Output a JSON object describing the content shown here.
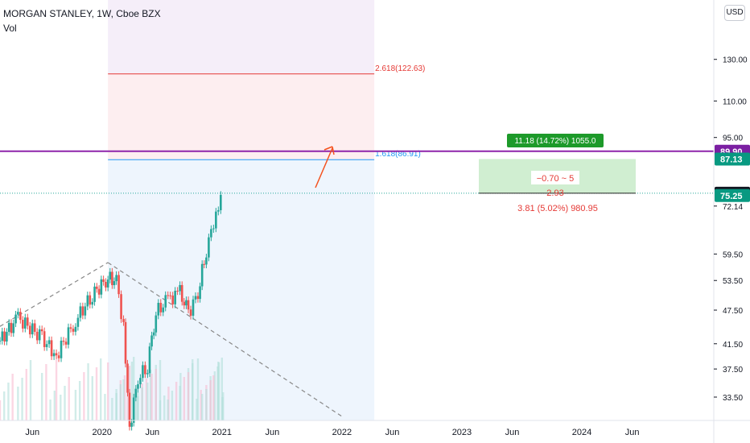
{
  "header": {
    "symbol": "MORGAN STANLEY, 1W, Cboe BZX",
    "indicator": "Vol",
    "currency": "USD"
  },
  "colors": {
    "bull": "#26a69a",
    "bear": "#ef5350",
    "volume_bull": "#b2dfdb",
    "volume_bear": "#f8bbd0",
    "fib_upper_zone": "#fdeef0",
    "fib_lower_zone": "#eef5fd",
    "fib_2618_line": "#e53935",
    "fib_1618_line": "#2196f3",
    "horizontal_line": "#8e24aa",
    "target_zone": "#c8ebc9",
    "price_line": "#26a69a",
    "trendline": "#888888",
    "arrow": "#f4511e",
    "label_green": "#089981",
    "label_dark": "#131722",
    "label_purple": "#7b1fa2"
  },
  "chart_data": {
    "type": "candlestick",
    "x_ticks": [
      {
        "label": "Jun",
        "t": 2019.42
      },
      {
        "label": "2020",
        "t": 2020.0
      },
      {
        "label": "Jun",
        "t": 2020.42
      },
      {
        "label": "2021",
        "t": 2021.0
      },
      {
        "label": "Jun",
        "t": 2021.42
      },
      {
        "label": "2022",
        "t": 2022.0
      },
      {
        "label": "Jun",
        "t": 2022.42
      },
      {
        "label": "2023",
        "t": 2023.0
      },
      {
        "label": "Jun",
        "t": 2023.42
      },
      {
        "label": "2024",
        "t": 2024.0
      },
      {
        "label": "Jun",
        "t": 2024.42
      }
    ],
    "y_axis": {
      "scale": "log",
      "ticks": [
        "130.00",
        "110.00",
        "95.00",
        "72.14",
        "59.50",
        "53.50",
        "47.50",
        "41.50",
        "37.50",
        "33.50"
      ]
    },
    "x_range": [
      2019.15,
      2025.1
    ],
    "y_range": [
      30.5,
      165
    ],
    "series": [
      {
        "t": 2019.15,
        "close": 42.0
      },
      {
        "t": 2019.3,
        "close": 46.0
      },
      {
        "t": 2019.5,
        "close": 42.5
      },
      {
        "t": 2019.62,
        "close": 39.5
      },
      {
        "t": 2019.78,
        "close": 45.5
      },
      {
        "t": 2019.92,
        "close": 50.5
      },
      {
        "t": 2020.05,
        "close": 54.0
      },
      {
        "t": 2020.12,
        "close": 53.5
      },
      {
        "t": 2020.18,
        "close": 44.0
      },
      {
        "t": 2020.23,
        "close": 29.5
      },
      {
        "t": 2020.3,
        "close": 36.0
      },
      {
        "t": 2020.38,
        "close": 38.0
      },
      {
        "t": 2020.45,
        "close": 47.0
      },
      {
        "t": 2020.55,
        "close": 49.5
      },
      {
        "t": 2020.65,
        "close": 51.0
      },
      {
        "t": 2020.72,
        "close": 47.0
      },
      {
        "t": 2020.8,
        "close": 50.5
      },
      {
        "t": 2020.87,
        "close": 60.5
      },
      {
        "t": 2020.93,
        "close": 67.0
      },
      {
        "t": 2020.97,
        "close": 70.0
      },
      {
        "t": 2021.01,
        "close": 78.5
      }
    ],
    "fib_levels": [
      {
        "ratio": 2.618,
        "price": 122.63,
        "label": "2.618(122.63)"
      },
      {
        "ratio": 1.618,
        "price": 86.91,
        "label": "1.618(86.91)"
      }
    ],
    "horizontal_line": 89.9,
    "current_price": 75.95,
    "price_labels": [
      "89.90",
      "87.13",
      "75.95",
      "75.25"
    ],
    "projection": {
      "target_text": "11.18 (14.72%) 1055.0",
      "range_text": "−0.70 ~ 5",
      "mid_text": "2.93",
      "stop_text": "3.81 (5.02%) 980.95"
    }
  }
}
